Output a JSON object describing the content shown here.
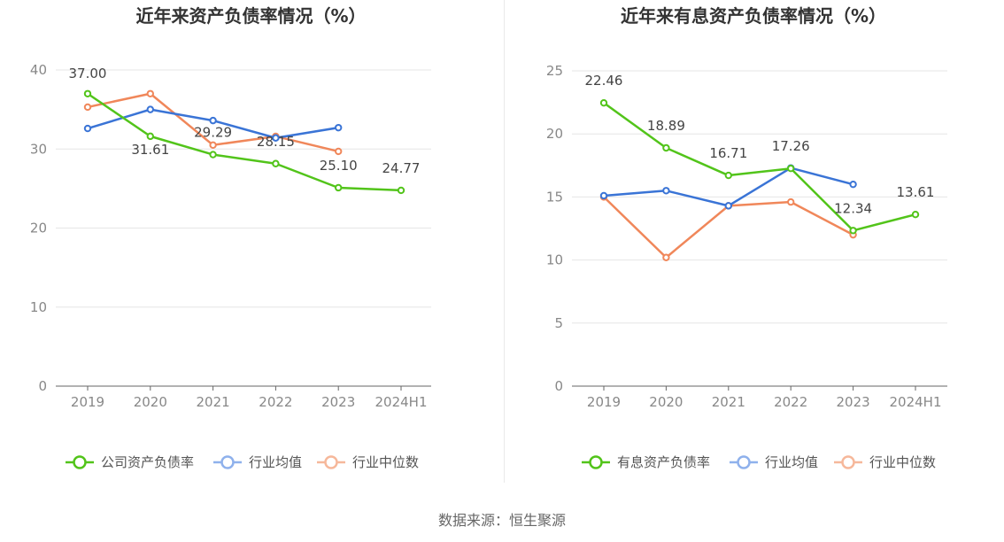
{
  "charts": [
    {
      "title": "近年来资产负债率情况（%）",
      "chart_data": {
        "type": "line",
        "categories": [
          "2019",
          "2020",
          "2021",
          "2022",
          "2023",
          "2024H1"
        ],
        "ylim": [
          0,
          40
        ],
        "yticks": [
          0,
          10,
          20,
          30,
          40
        ],
        "grid": true,
        "legend_position": "bottom",
        "series": [
          {
            "name": "公司资产负债率",
            "color": "#52c41a",
            "labeled": true,
            "values": [
              37.0,
              31.61,
              29.29,
              28.15,
              25.1,
              24.77
            ]
          },
          {
            "name": "行业均值",
            "color": "#3a74d6",
            "labeled": false,
            "values": [
              32.6,
              35.0,
              33.6,
              31.4,
              32.7,
              null
            ]
          },
          {
            "name": "行业中位数",
            "color": "#f0875a",
            "labeled": false,
            "values": [
              35.3,
              37.0,
              30.5,
              31.6,
              29.7,
              null
            ]
          }
        ],
        "data_labels": [
          "37.00",
          "31.61",
          "29.29",
          "28.15",
          "25.10",
          "24.77"
        ]
      }
    },
    {
      "title": "近年来有息资产负债率情况（%）",
      "chart_data": {
        "type": "line",
        "categories": [
          "2019",
          "2020",
          "2021",
          "2022",
          "2023",
          "2024H1"
        ],
        "ylim": [
          0,
          25
        ],
        "yticks": [
          0,
          5,
          10,
          15,
          20,
          25
        ],
        "grid": true,
        "legend_position": "bottom",
        "series": [
          {
            "name": "有息资产负债率",
            "color": "#52c41a",
            "labeled": true,
            "values": [
              22.46,
              18.89,
              16.71,
              17.26,
              12.34,
              13.61
            ]
          },
          {
            "name": "行业均值",
            "color": "#3a74d6",
            "labeled": false,
            "values": [
              15.1,
              15.5,
              14.3,
              17.3,
              16.0,
              null
            ]
          },
          {
            "name": "行业中位数",
            "color": "#f0875a",
            "labeled": false,
            "values": [
              15.0,
              10.2,
              14.3,
              14.6,
              12.0,
              null
            ]
          }
        ],
        "data_labels": [
          "22.46",
          "18.89",
          "16.71",
          "17.26",
          "12.34",
          "13.61"
        ]
      }
    }
  ],
  "source": "数据来源：恒生聚源"
}
